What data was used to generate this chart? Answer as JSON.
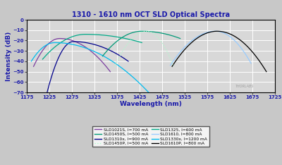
{
  "title": "1310 - 1610 nm OCT SLD Optical Spectra",
  "xlabel": "Wavelength (nm)",
  "ylabel": "Intensity (dB)",
  "xlim": [
    1175,
    1725
  ],
  "ylim": [
    -70,
    0
  ],
  "xticks": [
    1175,
    1225,
    1275,
    1325,
    1375,
    1425,
    1475,
    1525,
    1575,
    1625,
    1675,
    1725
  ],
  "yticks": [
    0,
    -10,
    -20,
    -30,
    -40,
    -50,
    -60,
    -70
  ],
  "fig_bg": "#c8c8c8",
  "plot_bg": "#d8d8d8",
  "grid_color": "#ffffff",
  "title_color": "#1a1aaa",
  "label_color": "#1a1aaa",
  "tick_color": "#1a1aaa",
  "watermark": "THORLABS",
  "series": [
    {
      "label": "SLD1021S, I=700 mA",
      "color": "#7b3fa0",
      "ls": "solid"
    },
    {
      "label": "SLD1310x, I=900 mA",
      "color": "#00008b",
      "ls": "solid"
    },
    {
      "label": "SLD1325, I=600 mA",
      "color": "#00aa88",
      "ls": "solid"
    },
    {
      "label": "SLD1330x, I=1200 mA",
      "color": "#00bbee",
      "ls": "solid"
    },
    {
      "label": "SLD1450S, I=500 mA",
      "color": "#009977",
      "ls": "solid"
    },
    {
      "label": "SLD1450P, I=500 mA",
      "color": "#aaffcc",
      "ls": "dotted"
    },
    {
      "label": "SLD1610, I=800 mA",
      "color": "#99ccff",
      "ls": "solid"
    },
    {
      "label": "SLD1610P, I=800 mA",
      "color": "#000000",
      "ls": "solid"
    }
  ]
}
